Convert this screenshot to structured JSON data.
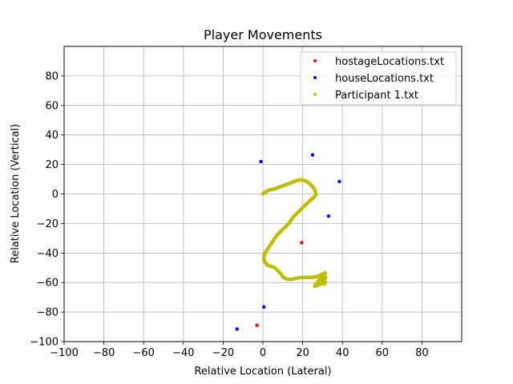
{
  "chart_data": {
    "type": "scatter",
    "title": "Player Movements",
    "xlabel": "Relative Location (Lateral)",
    "ylabel": "Relative Location (Vertical)",
    "xlim": [
      -100,
      100
    ],
    "ylim": [
      -100,
      100
    ],
    "xticks": [
      -100,
      -80,
      -60,
      -40,
      -20,
      0,
      20,
      40,
      60,
      80
    ],
    "yticks": [
      -100,
      -80,
      -60,
      -40,
      -20,
      0,
      20,
      40,
      60,
      80
    ],
    "grid": true,
    "legend_position": "top-right",
    "series": [
      {
        "name": "hostageLocations.txt",
        "color": "#ff0000",
        "points": [
          [
            19.5,
            -33
          ],
          [
            -3,
            -89
          ]
        ]
      },
      {
        "name": "houseLocations.txt",
        "color": "#0000ff",
        "points": [
          [
            -1,
            22
          ],
          [
            25,
            26.5
          ],
          [
            38.5,
            8.5
          ],
          [
            33,
            -15
          ],
          [
            0.5,
            -76.5
          ],
          [
            -13,
            -91.5
          ]
        ]
      },
      {
        "name": "Participant 1.txt",
        "color": "#bfbf00",
        "points": [
          [
            0,
            0
          ],
          [
            1,
            1
          ],
          [
            2,
            2
          ],
          [
            4,
            3
          ],
          [
            6,
            3.5
          ],
          [
            8,
            4.5
          ],
          [
            10,
            5.5
          ],
          [
            12,
            6.5
          ],
          [
            14,
            7.5
          ],
          [
            16,
            8.5
          ],
          [
            18,
            9.5
          ],
          [
            20,
            9.5
          ],
          [
            22,
            8.5
          ],
          [
            23.5,
            7
          ],
          [
            25,
            5
          ],
          [
            26,
            3
          ],
          [
            26.5,
            1
          ],
          [
            26.5,
            -1
          ],
          [
            25.5,
            -2.5
          ],
          [
            24,
            -4
          ],
          [
            22.5,
            -6
          ],
          [
            21,
            -8
          ],
          [
            19.5,
            -10
          ],
          [
            18,
            -12
          ],
          [
            16.5,
            -14
          ],
          [
            15,
            -16
          ],
          [
            14,
            -18
          ],
          [
            13,
            -20
          ],
          [
            11.5,
            -22
          ],
          [
            10,
            -24
          ],
          [
            8.5,
            -26
          ],
          [
            7,
            -28
          ],
          [
            6,
            -30
          ],
          [
            5,
            -32
          ],
          [
            4,
            -34
          ],
          [
            3,
            -36
          ],
          [
            2,
            -38
          ],
          [
            1,
            -40
          ],
          [
            0.5,
            -42
          ],
          [
            0.5,
            -44
          ],
          [
            1,
            -46
          ],
          [
            2,
            -48
          ],
          [
            4,
            -49
          ],
          [
            6,
            -50
          ],
          [
            7.5,
            -52
          ],
          [
            9,
            -54
          ],
          [
            10,
            -56
          ],
          [
            11.5,
            -57.5
          ],
          [
            13.5,
            -58
          ],
          [
            15.5,
            -57.5
          ],
          [
            17.5,
            -57
          ],
          [
            20,
            -56.5
          ],
          [
            22.5,
            -56.5
          ],
          [
            25,
            -56.5
          ],
          [
            27,
            -56
          ],
          [
            28.5,
            -55.5
          ],
          [
            29.5,
            -54.5
          ],
          [
            30.5,
            -54
          ],
          [
            31.5,
            -53.5
          ],
          [
            30,
            -55
          ],
          [
            29,
            -57
          ],
          [
            28,
            -59
          ],
          [
            27,
            -60.5
          ],
          [
            26,
            -62.5
          ],
          [
            28.5,
            -61.5
          ],
          [
            30,
            -60.5
          ],
          [
            31,
            -58.5
          ],
          [
            31.5,
            -56.5
          ],
          [
            30.5,
            -58
          ],
          [
            29.5,
            -60
          ],
          [
            31,
            -61
          ],
          [
            31.5,
            -59.5
          ]
        ]
      }
    ]
  }
}
